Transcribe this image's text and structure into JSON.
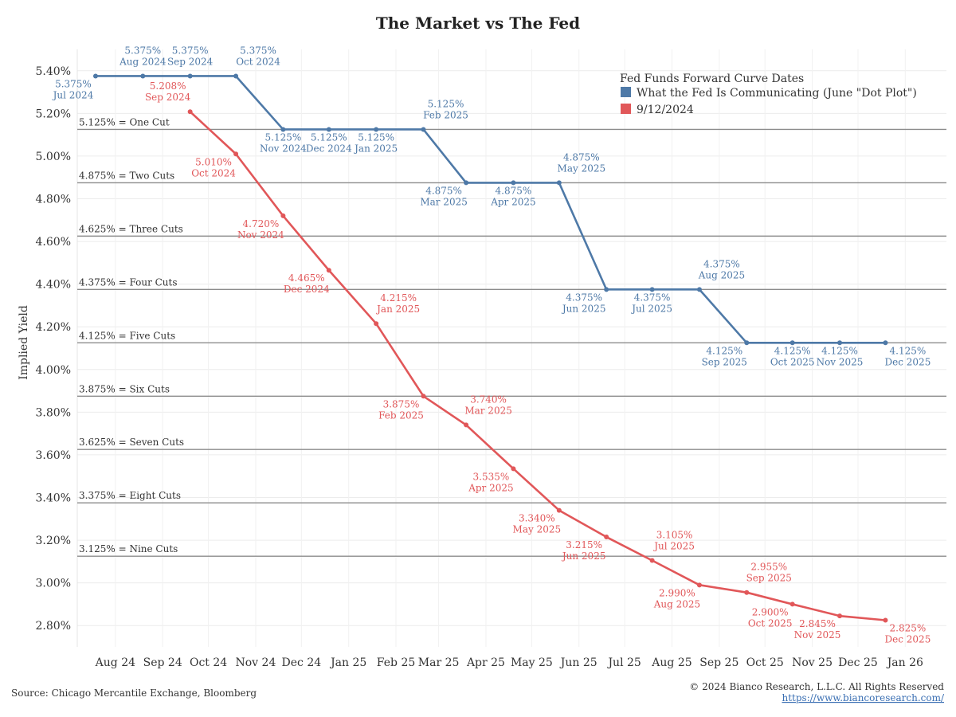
{
  "chart_data": {
    "type": "line",
    "title": "The Market vs The Fed",
    "ylabel": "Implied Yield",
    "xlabel": "",
    "ylim": [
      2.7,
      5.5
    ],
    "yticks": [
      2.8,
      3.0,
      3.2,
      3.4,
      3.6,
      3.8,
      4.0,
      4.2,
      4.4,
      4.6,
      4.8,
      5.0,
      5.2,
      5.4
    ],
    "ytick_labels": [
      "2.80%",
      "3.00%",
      "3.20%",
      "3.40%",
      "3.60%",
      "3.80%",
      "4.00%",
      "4.20%",
      "4.40%",
      "4.60%",
      "4.80%",
      "5.00%",
      "5.20%",
      "5.40%"
    ],
    "xlim": [
      "2024-07-07",
      "2026-01-28"
    ],
    "xticks": [
      {
        "label": "Aug 24",
        "date": "2024-08-01"
      },
      {
        "label": "Sep 24",
        "date": "2024-09-01"
      },
      {
        "label": "Oct 24",
        "date": "2024-10-01"
      },
      {
        "label": "Nov 24",
        "date": "2024-11-01"
      },
      {
        "label": "Dec 24",
        "date": "2024-12-01"
      },
      {
        "label": "Jan 25",
        "date": "2025-01-01"
      },
      {
        "label": "Feb 25",
        "date": "2025-02-01"
      },
      {
        "label": "Mar 25",
        "date": "2025-03-01"
      },
      {
        "label": "Apr 25",
        "date": "2025-04-01"
      },
      {
        "label": "May 25",
        "date": "2025-05-01"
      },
      {
        "label": "Jun 25",
        "date": "2025-06-01"
      },
      {
        "label": "Jul 25",
        "date": "2025-07-01"
      },
      {
        "label": "Aug 25",
        "date": "2025-08-01"
      },
      {
        "label": "Sep 25",
        "date": "2025-09-01"
      },
      {
        "label": "Oct 25",
        "date": "2025-10-01"
      },
      {
        "label": "Nov 25",
        "date": "2025-11-01"
      },
      {
        "label": "Dec 25",
        "date": "2025-12-01"
      },
      {
        "label": "Jan 26",
        "date": "2026-01-01"
      }
    ],
    "grid": true,
    "reference_lines": [
      {
        "value": 5.125,
        "label": "5.125% = One Cut"
      },
      {
        "value": 4.875,
        "label": "4.875% = Two Cuts"
      },
      {
        "value": 4.625,
        "label": "4.625% = Three Cuts"
      },
      {
        "value": 4.375,
        "label": "4.375% = Four Cuts"
      },
      {
        "value": 4.125,
        "label": "4.125% = Five Cuts"
      },
      {
        "value": 3.875,
        "label": "3.875% = Six Cuts"
      },
      {
        "value": 3.625,
        "label": "3.625% = Seven Cuts"
      },
      {
        "value": 3.375,
        "label": "3.375% = Eight Cuts"
      },
      {
        "value": 3.125,
        "label": "3.125% = Nine Cuts"
      }
    ],
    "legend": {
      "title": "Fed Funds Forward Curve Dates",
      "placement": "top-right"
    },
    "series": [
      {
        "name": "What the Fed Is Communicating (June \"Dot Plot\")",
        "color": "#4e79a7",
        "points": [
          {
            "date": "2024-07-19",
            "value": 5.375,
            "value_label": "5.375%",
            "date_label": "Jul 2024",
            "label_pos": "below-left"
          },
          {
            "date": "2024-08-19",
            "value": 5.375,
            "value_label": "5.375%",
            "date_label": "Aug 2024",
            "label_pos": "above"
          },
          {
            "date": "2024-09-19",
            "value": 5.375,
            "value_label": "5.375%",
            "date_label": "Sep 2024",
            "label_pos": "above"
          },
          {
            "date": "2024-10-19",
            "value": 5.375,
            "value_label": "5.375%",
            "date_label": "Oct 2024",
            "label_pos": "above-right"
          },
          {
            "date": "2024-11-19",
            "value": 5.125,
            "value_label": "5.125%",
            "date_label": "Nov 2024",
            "label_pos": "below"
          },
          {
            "date": "2024-12-19",
            "value": 5.125,
            "value_label": "5.125%",
            "date_label": "Dec 2024",
            "label_pos": "below"
          },
          {
            "date": "2025-01-19",
            "value": 5.125,
            "value_label": "5.125%",
            "date_label": "Jan 2025",
            "label_pos": "below"
          },
          {
            "date": "2025-02-19",
            "value": 5.125,
            "value_label": "5.125%",
            "date_label": "Feb 2025",
            "label_pos": "above-right"
          },
          {
            "date": "2025-03-19",
            "value": 4.875,
            "value_label": "4.875%",
            "date_label": "Mar 2025",
            "label_pos": "below-left"
          },
          {
            "date": "2025-04-19",
            "value": 4.875,
            "value_label": "4.875%",
            "date_label": "Apr 2025",
            "label_pos": "below"
          },
          {
            "date": "2025-05-19",
            "value": 4.875,
            "value_label": "4.875%",
            "date_label": "May 2025",
            "label_pos": "above-right"
          },
          {
            "date": "2025-06-19",
            "value": 4.375,
            "value_label": "4.375%",
            "date_label": "Jun 2025",
            "label_pos": "below-left"
          },
          {
            "date": "2025-07-19",
            "value": 4.375,
            "value_label": "4.375%",
            "date_label": "Jul 2025",
            "label_pos": "below"
          },
          {
            "date": "2025-08-19",
            "value": 4.375,
            "value_label": "4.375%",
            "date_label": "Aug 2025",
            "label_pos": "above-right"
          },
          {
            "date": "2025-09-19",
            "value": 4.125,
            "value_label": "4.125%",
            "date_label": "Sep 2025",
            "label_pos": "below-left"
          },
          {
            "date": "2025-10-19",
            "value": 4.125,
            "value_label": "4.125%",
            "date_label": "Oct 2025",
            "label_pos": "below"
          },
          {
            "date": "2025-11-19",
            "value": 4.125,
            "value_label": "4.125%",
            "date_label": "Nov 2025",
            "label_pos": "below"
          },
          {
            "date": "2025-12-19",
            "value": 4.125,
            "value_label": "4.125%",
            "date_label": "Dec 2025",
            "label_pos": "below-right"
          }
        ]
      },
      {
        "name": "9/12/2024",
        "color": "#e15759",
        "points": [
          {
            "date": "2024-09-19",
            "value": 5.208,
            "value_label": "5.208%",
            "date_label": "Sep 2024",
            "label_pos": "above-left"
          },
          {
            "date": "2024-10-19",
            "value": 5.01,
            "value_label": "5.010%",
            "date_label": "Oct 2024",
            "label_pos": "below-left"
          },
          {
            "date": "2024-11-19",
            "value": 4.72,
            "value_label": "4.720%",
            "date_label": "Nov 2024",
            "label_pos": "below-left"
          },
          {
            "date": "2024-12-19",
            "value": 4.465,
            "value_label": "4.465%",
            "date_label": "Dec 2024",
            "label_pos": "below-left"
          },
          {
            "date": "2025-01-19",
            "value": 4.215,
            "value_label": "4.215%",
            "date_label": "Jan 2025",
            "label_pos": "above-right"
          },
          {
            "date": "2025-02-19",
            "value": 3.875,
            "value_label": "3.875%",
            "date_label": "Feb 2025",
            "label_pos": "below-left"
          },
          {
            "date": "2025-03-19",
            "value": 3.74,
            "value_label": "3.740%",
            "date_label": "Mar 2025",
            "label_pos": "above-right"
          },
          {
            "date": "2025-04-19",
            "value": 3.535,
            "value_label": "3.535%",
            "date_label": "Apr 2025",
            "label_pos": "below-left"
          },
          {
            "date": "2025-05-19",
            "value": 3.34,
            "value_label": "3.340%",
            "date_label": "May 2025",
            "label_pos": "below-left"
          },
          {
            "date": "2025-06-19",
            "value": 3.215,
            "value_label": "3.215%",
            "date_label": "Jun 2025",
            "label_pos": "below-left"
          },
          {
            "date": "2025-07-19",
            "value": 3.105,
            "value_label": "3.105%",
            "date_label": "Jul 2025",
            "label_pos": "above-right"
          },
          {
            "date": "2025-08-19",
            "value": 2.99,
            "value_label": "2.990%",
            "date_label": "Aug 2025",
            "label_pos": "below-left"
          },
          {
            "date": "2025-09-19",
            "value": 2.955,
            "value_label": "2.955%",
            "date_label": "Sep 2025",
            "label_pos": "above-right"
          },
          {
            "date": "2025-10-19",
            "value": 2.9,
            "value_label": "2.900%",
            "date_label": "Oct 2025",
            "label_pos": "below-left"
          },
          {
            "date": "2025-11-19",
            "value": 2.845,
            "value_label": "2.845%",
            "date_label": "Nov 2025",
            "label_pos": "below-left"
          },
          {
            "date": "2025-12-19",
            "value": 2.825,
            "value_label": "2.825%",
            "date_label": "Dec 2025",
            "label_pos": "below-right"
          }
        ]
      }
    ]
  },
  "footer": {
    "source": "Source: Chicago Mercantile Exchange, Bloomberg",
    "copyright": "© 2024 Bianco Research, L.L.C. All Rights Reserved",
    "link": "https://www.biancoresearch.com/"
  }
}
